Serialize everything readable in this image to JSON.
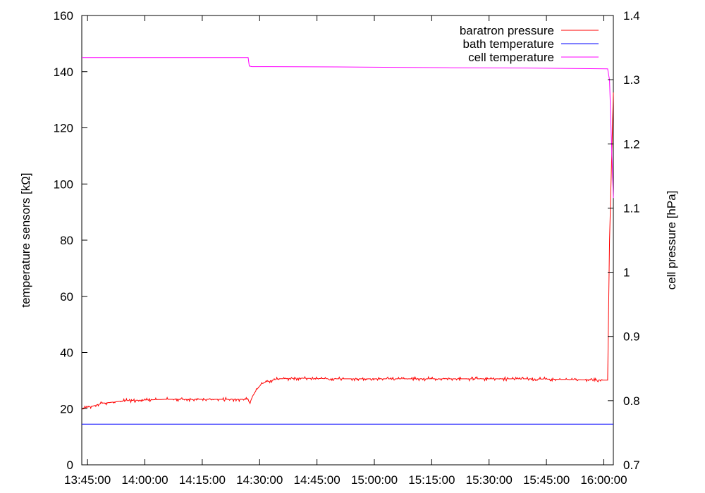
{
  "chart_data": {
    "type": "line",
    "xlabel": "",
    "y_left_label": "temperature sensors [kΩ]",
    "y_right_label": "cell pressure [hPa]",
    "x_tick_labels": [
      "13:45:00",
      "14:00:00",
      "14:15:00",
      "14:30:00",
      "14:45:00",
      "15:00:00",
      "15:15:00",
      "15:30:00",
      "15:45:00",
      "16:00:00"
    ],
    "x_tick_minutes": [
      105,
      120,
      135,
      150,
      165,
      180,
      195,
      210,
      225,
      240
    ],
    "xlim_minutes": [
      103.5,
      242.5
    ],
    "ylim_left": [
      0,
      160
    ],
    "ylim_right": [
      0.7,
      1.4
    ],
    "y_left_ticks": [
      0,
      20,
      40,
      60,
      80,
      100,
      120,
      140,
      160
    ],
    "y_right_ticks": [
      0.7,
      0.8,
      0.9,
      1.0,
      1.1,
      1.2,
      1.3,
      1.4
    ],
    "y_left_tick_labels": [
      "0",
      "20",
      "40",
      "60",
      "80",
      "100",
      "120",
      "140",
      "160"
    ],
    "y_right_tick_labels": [
      "0.7",
      "0.8",
      "0.9",
      "1",
      "1.1",
      "1.2",
      "1.3",
      "1.4"
    ],
    "grid": false,
    "legend_position": "top-right",
    "series": [
      {
        "name": "baratron pressure",
        "axis": "right",
        "color": "#ff0000",
        "x_minutes": [
          103.5,
          106,
          109,
          115,
          125,
          136,
          147,
          147.5,
          148.5,
          150.5,
          152,
          155,
          160,
          170,
          180,
          200,
          220,
          240,
          241,
          241.5,
          242.5
        ],
        "y": [
          0.788,
          0.791,
          0.796,
          0.8,
          0.802,
          0.802,
          0.802,
          0.797,
          0.812,
          0.826,
          0.83,
          0.834,
          0.835,
          0.834,
          0.834,
          0.834,
          0.834,
          0.832,
          0.832,
          1.05,
          1.28
        ]
      },
      {
        "name": "bath temperature",
        "axis": "left",
        "color": "#0000ff",
        "x_minutes": [
          103.5,
          242.5
        ],
        "y": [
          14.5,
          14.5
        ]
      },
      {
        "name": "cell temperature",
        "axis": "left",
        "color": "#ff00ff",
        "x_minutes": [
          103.5,
          130,
          147,
          147.3,
          148,
          170,
          200,
          220,
          241,
          241.5,
          242,
          242.5
        ],
        "y": [
          145.0,
          145.0,
          145.0,
          142.0,
          141.8,
          141.7,
          141.4,
          141.3,
          141.0,
          137,
          115,
          95
        ]
      }
    ]
  }
}
